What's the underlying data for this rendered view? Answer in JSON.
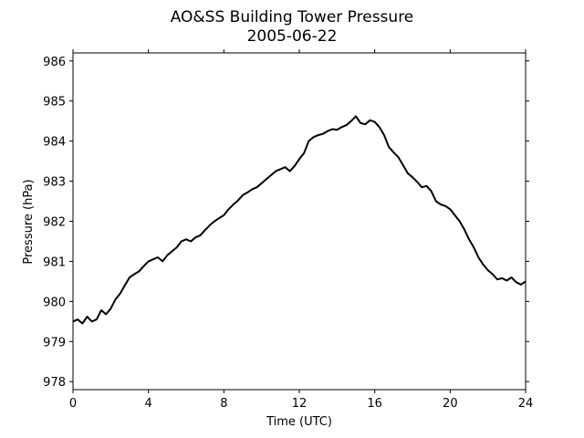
{
  "chart_data": {
    "type": "line",
    "title": "AO&SS Building Tower Pressure",
    "subtitle": "2005-06-22",
    "xlabel": "Time (UTC)",
    "ylabel": "Pressure (hPa)",
    "xlim": [
      0,
      24
    ],
    "ylim": [
      977.8,
      986.2
    ],
    "xticks": [
      0,
      4,
      8,
      12,
      16,
      20,
      24
    ],
    "yticks": [
      978,
      979,
      980,
      981,
      982,
      983,
      984,
      985,
      986
    ],
    "grid": false,
    "legend": "none",
    "line_color": "#000000",
    "series": [
      {
        "x": [
          0.0,
          0.25,
          0.5,
          0.75,
          1.0,
          1.25,
          1.5,
          1.75,
          2.0,
          2.25,
          2.5,
          2.75,
          3.0,
          3.25,
          3.5,
          3.75,
          4.0,
          4.25,
          4.5,
          4.75,
          5.0,
          5.25,
          5.5,
          5.75,
          6.0,
          6.25,
          6.5,
          6.75,
          7.0,
          7.25,
          7.5,
          7.75,
          8.0,
          8.25,
          8.5,
          8.75,
          9.0,
          9.25,
          9.5,
          9.75,
          10.0,
          10.25,
          10.5,
          10.75,
          11.0,
          11.25,
          11.5,
          11.75,
          12.0,
          12.25,
          12.5,
          12.75,
          13.0,
          13.25,
          13.5,
          13.75,
          14.0,
          14.25,
          14.5,
          14.75,
          15.0,
          15.25,
          15.5,
          15.75,
          16.0,
          16.25,
          16.5,
          16.75,
          17.0,
          17.25,
          17.5,
          17.75,
          18.0,
          18.25,
          18.5,
          18.75,
          19.0,
          19.25,
          19.5,
          19.75,
          20.0,
          20.25,
          20.5,
          20.75,
          21.0,
          21.25,
          21.5,
          21.75,
          22.0,
          22.25,
          22.5,
          22.75,
          23.0,
          23.25,
          23.5,
          23.75,
          24.0
        ],
        "values": [
          979.5,
          979.55,
          979.45,
          979.62,
          979.5,
          979.55,
          979.78,
          979.68,
          979.82,
          980.05,
          980.2,
          980.4,
          980.6,
          980.68,
          980.75,
          980.88,
          981.0,
          981.05,
          981.1,
          981.0,
          981.15,
          981.25,
          981.35,
          981.5,
          981.55,
          981.5,
          981.6,
          981.65,
          981.78,
          981.9,
          982.0,
          982.08,
          982.15,
          982.3,
          982.42,
          982.52,
          982.65,
          982.72,
          982.8,
          982.85,
          982.95,
          983.05,
          983.15,
          983.25,
          983.3,
          983.35,
          983.25,
          983.38,
          983.55,
          983.7,
          984.0,
          984.1,
          984.15,
          984.18,
          984.25,
          984.3,
          984.28,
          984.35,
          984.4,
          984.5,
          984.62,
          984.45,
          984.42,
          984.52,
          984.48,
          984.35,
          984.15,
          983.85,
          983.72,
          983.6,
          983.4,
          983.2,
          983.1,
          982.98,
          982.85,
          982.88,
          982.75,
          982.5,
          982.42,
          982.38,
          982.3,
          982.15,
          982.0,
          981.8,
          981.55,
          981.35,
          981.1,
          980.92,
          980.78,
          980.68,
          980.55,
          980.58,
          980.52,
          980.6,
          980.48,
          980.42,
          980.5
        ]
      }
    ]
  }
}
